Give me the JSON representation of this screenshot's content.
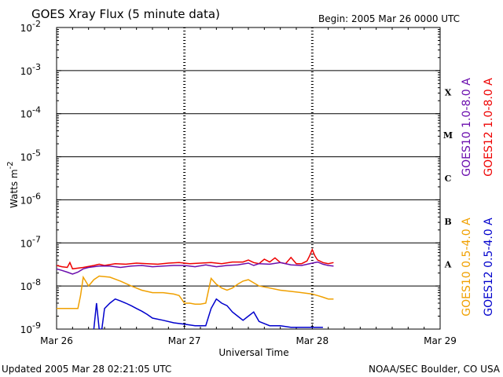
{
  "title": "GOES Xray Flux (5 minute data)",
  "begin": "Begin:  2005 Mar 26 0000 UTC",
  "updated": "Updated 2005 Mar 28 02:21:05 UTC",
  "credit": "NOAA/SEC Boulder, CO USA",
  "chart_data": {
    "type": "line",
    "title": "GOES Xray Flux (5 minute data)",
    "xlabel": "Universal Time",
    "ylabel": "Watts m",
    "ylabel_sup": "-2",
    "yscale": "log",
    "ylim": [
      1e-09,
      0.01
    ],
    "xlim": [
      0,
      72
    ],
    "x_unit": "hours since 2005 Mar 26 0000 UTC",
    "x_ticks": [
      {
        "x": 0,
        "label": "Mar 26"
      },
      {
        "x": 24,
        "label": "Mar 27"
      },
      {
        "x": 48,
        "label": "Mar 28"
      },
      {
        "x": 72,
        "label": "Mar 29"
      }
    ],
    "y_ticks": [
      {
        "exp": -9,
        "label": "10",
        "sup": "-9"
      },
      {
        "exp": -8,
        "label": "10",
        "sup": "-8"
      },
      {
        "exp": -7,
        "label": "10",
        "sup": "-7"
      },
      {
        "exp": -6,
        "label": "10",
        "sup": "-6"
      },
      {
        "exp": -5,
        "label": "10",
        "sup": "-5"
      },
      {
        "exp": -4,
        "label": "10",
        "sup": "-4"
      },
      {
        "exp": -3,
        "label": "10",
        "sup": "-3"
      },
      {
        "exp": -2,
        "label": "10",
        "sup": "-2"
      }
    ],
    "flare_classes": [
      {
        "label": "A",
        "exp": -7.5
      },
      {
        "label": "B",
        "exp": -6.5
      },
      {
        "label": "C",
        "exp": -5.5
      },
      {
        "label": "M",
        "exp": -4.5
      },
      {
        "label": "X",
        "exp": -3.5
      }
    ],
    "grid": true,
    "series": [
      {
        "name": "GOES12 1.0-8.0 A",
        "color": "#ee0000",
        "x": [
          0,
          1,
          2,
          2.5,
          3,
          5,
          7,
          8,
          9,
          11,
          13,
          15,
          17,
          19,
          21,
          23,
          25,
          27,
          29,
          31,
          33,
          35,
          36,
          37,
          38,
          39,
          40,
          41,
          42,
          43,
          44,
          45,
          46,
          47,
          47.5,
          48,
          48.5,
          49,
          50,
          51,
          52
        ],
        "y": [
          3e-08,
          2.8e-08,
          2.7e-08,
          3.5e-08,
          2.5e-08,
          2.7e-08,
          3e-08,
          3.2e-08,
          3e-08,
          3.3e-08,
          3.2e-08,
          3.4e-08,
          3.3e-08,
          3.2e-08,
          3.4e-08,
          3.5e-08,
          3.3e-08,
          3.4e-08,
          3.5e-08,
          3.3e-08,
          3.6e-08,
          3.6e-08,
          4e-08,
          3.5e-08,
          3.3e-08,
          4.2e-08,
          3.6e-08,
          4.5e-08,
          3.5e-08,
          3.3e-08,
          4.6e-08,
          3.3e-08,
          3.3e-08,
          3.8e-08,
          5e-08,
          7e-08,
          5e-08,
          4e-08,
          3.5e-08,
          3.3e-08,
          3.5e-08
        ]
      },
      {
        "name": "GOES10 1.0-8.0 A",
        "color": "#6a0dad",
        "x": [
          0,
          1,
          2,
          3,
          4,
          5,
          6,
          7,
          8,
          10,
          12,
          14,
          16,
          18,
          20,
          22,
          24,
          26,
          28,
          30,
          32,
          34,
          36,
          37,
          38,
          40,
          42,
          44,
          46,
          48,
          49,
          50,
          51,
          52
        ],
        "y": [
          2.5e-08,
          2.3e-08,
          2.1e-08,
          1.9e-08,
          2.1e-08,
          2.5e-08,
          2.7e-08,
          2.8e-08,
          2.9e-08,
          2.9e-08,
          2.7e-08,
          2.9e-08,
          3e-08,
          2.8e-08,
          2.9e-08,
          3e-08,
          3e-08,
          2.8e-08,
          3.1e-08,
          2.8e-08,
          3e-08,
          3.1e-08,
          3.4e-08,
          3e-08,
          3.3e-08,
          3.2e-08,
          3.5e-08,
          3.1e-08,
          3e-08,
          3.4e-08,
          3.6e-08,
          3.2e-08,
          3e-08,
          2.9e-08
        ]
      },
      {
        "name": "GOES10 0.5-4.0 A",
        "color": "#f0a000",
        "x": [
          0,
          3,
          4,
          4.5,
          5,
          6,
          7,
          8,
          10,
          12,
          14,
          16,
          18,
          20,
          22,
          23,
          24,
          25,
          26,
          27,
          28,
          29,
          30,
          31,
          32,
          33,
          34,
          35,
          36,
          38,
          40,
          42,
          44,
          46,
          48,
          49,
          50,
          51,
          52
        ],
        "y": [
          3e-09,
          3e-09,
          3e-09,
          6e-09,
          1.6e-08,
          1e-08,
          1.4e-08,
          1.7e-08,
          1.6e-08,
          1.3e-08,
          1e-08,
          8e-09,
          7e-09,
          7e-09,
          6.5e-09,
          6e-09,
          4e-09,
          4e-09,
          3.8e-09,
          3.8e-09,
          4e-09,
          1.5e-08,
          1.1e-08,
          9e-09,
          8e-09,
          9e-09,
          1.1e-08,
          1.3e-08,
          1.4e-08,
          1e-08,
          9e-09,
          8e-09,
          7.5e-09,
          7e-09,
          6.5e-09,
          6e-09,
          5.5e-09,
          5e-09,
          5e-09
        ]
      },
      {
        "name": "GOES12 0.5-4.0 A",
        "color": "#0000cc",
        "x": [
          7,
          7.5,
          8,
          8.5,
          9,
          10,
          11,
          12,
          13,
          14,
          15,
          16,
          17,
          18,
          20,
          22,
          24,
          26,
          27,
          28,
          29,
          30,
          31,
          32,
          33,
          34,
          35,
          36,
          37,
          38,
          40,
          42,
          44,
          46,
          48,
          50
        ],
        "y": [
          1e-09,
          4e-09,
          1e-09,
          1e-09,
          3e-09,
          4e-09,
          5e-09,
          4.5e-09,
          4e-09,
          3.5e-09,
          3e-09,
          2.6e-09,
          2.2e-09,
          1.8e-09,
          1.6e-09,
          1.4e-09,
          1.3e-09,
          1.2e-09,
          1.2e-09,
          1.2e-09,
          3e-09,
          5e-09,
          4e-09,
          3.5e-09,
          2.5e-09,
          2e-09,
          1.6e-09,
          2e-09,
          2.5e-09,
          1.5e-09,
          1.2e-09,
          1.2e-09,
          1.1e-09,
          1.1e-09,
          1.1e-09,
          1.1e-09
        ]
      }
    ],
    "legend_right_upper": [
      "GOES10 1.0-8.0 A",
      "GOES12 1.0-8.0 A"
    ],
    "legend_right_lower": [
      "GOES10 0.5-4.0 A",
      "GOES12 0.5-4.0 A"
    ],
    "legend_placement": "right-vertical"
  }
}
